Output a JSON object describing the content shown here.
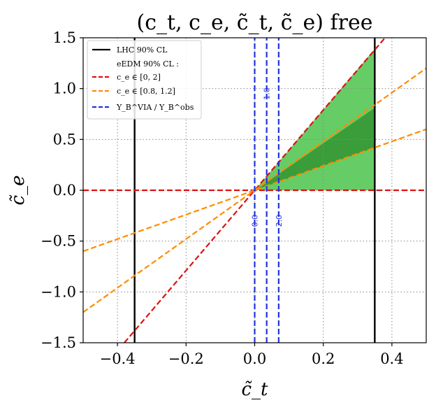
{
  "chart_data": {
    "type": "line",
    "title": "(c_t, c_e, c̃_t, c̃_e) free",
    "xlabel": "c̃_t",
    "ylabel": "c̃_e",
    "xlim": [
      -0.5,
      0.5
    ],
    "ylim": [
      -1.5,
      1.5
    ],
    "xticks": [
      "−0.4",
      "−0.2",
      "0.0",
      "0.2",
      "0.4"
    ],
    "xtick_values": [
      -0.4,
      -0.2,
      0.0,
      0.2,
      0.4
    ],
    "yticks": [
      "−1.5",
      "−1.0",
      "−0.5",
      "0.0",
      "0.5",
      "1.0",
      "1.5"
    ],
    "ytick_values": [
      -1.5,
      -1.0,
      -0.5,
      0.0,
      0.5,
      1.0,
      1.5
    ],
    "grid": true,
    "legend_position": "top-left",
    "legend": [
      {
        "label": "LHC 90% CL",
        "color": "#000000",
        "style": "solid"
      },
      {
        "label": "eEDM 90% CL :",
        "color": null,
        "style": "none"
      },
      {
        "label": "c_e ∈ [0, 2]",
        "color": "#dd1111",
        "style": "dashed"
      },
      {
        "label": "c_e ∈ [0.8, 1.2]",
        "color": "#ff8c00",
        "style": "dashed"
      },
      {
        "label": "Y_B^VIA / Y_B^obs",
        "color": "#2233dd",
        "style": "dashed"
      }
    ],
    "fill_regions": [
      {
        "name": "lighter region",
        "color": "#66cc66",
        "polygon": [
          [
            0.005,
            0.0
          ],
          [
            0.35,
            0.0
          ],
          [
            0.35,
            1.39
          ],
          [
            0.005,
            0.02
          ]
        ]
      },
      {
        "name": "darker region",
        "color": "#3a9d3a",
        "polygon": [
          [
            0.005,
            0.01
          ],
          [
            0.35,
            0.81
          ],
          [
            0.35,
            0.42
          ],
          [
            0.005,
            0.005
          ]
        ]
      }
    ],
    "series": [
      {
        "name": "LHC 90% CL",
        "color": "#000000",
        "style": "solid",
        "x": [
          -0.35,
          -0.35
        ],
        "y": [
          -1.5,
          1.5
        ]
      },
      {
        "name": "LHC 90% CL",
        "color": "#000000",
        "style": "solid",
        "x": [
          0.35,
          0.35
        ],
        "y": [
          -1.5,
          1.5
        ]
      },
      {
        "name": "c_e ∈ [0, 2]",
        "color": "#dd1111",
        "style": "dashed",
        "x": [
          -0.5,
          0.5
        ],
        "y": [
          0.0,
          0.0
        ]
      },
      {
        "name": "c_e ∈ [0, 2]",
        "color": "#dd1111",
        "style": "dashed",
        "x": [
          -0.38,
          0.38
        ],
        "y": [
          -1.5,
          1.5
        ]
      },
      {
        "name": "c_e ∈ [0.8, 1.2]",
        "color": "#ff8c00",
        "style": "dashed",
        "x": [
          -0.5,
          0.5
        ],
        "y": [
          -1.2,
          1.2
        ]
      },
      {
        "name": "c_e ∈ [0.8, 1.2]",
        "color": "#ff8c00",
        "style": "dashed",
        "x": [
          -0.5,
          0.5
        ],
        "y": [
          -0.6,
          0.6
        ]
      },
      {
        "name": "Y_B^VIA / Y_B^obs",
        "color": "#2233dd",
        "style": "dashed",
        "x": [
          0.0,
          0.0
        ],
        "y": [
          -1.5,
          1.5
        ]
      },
      {
        "name": "Y_B^VIA / Y_B^obs",
        "color": "#2233dd",
        "style": "dashed",
        "x": [
          0.035,
          0.035
        ],
        "y": [
          -1.5,
          1.5
        ]
      },
      {
        "name": "Y_B^VIA / Y_B^obs",
        "color": "#2233dd",
        "style": "dashed",
        "x": [
          0.07,
          0.07
        ],
        "y": [
          -1.5,
          1.5
        ]
      }
    ],
    "annotations": [
      {
        "text": "0.0",
        "x": 0.0,
        "y": -0.3
      },
      {
        "text": "1.0",
        "x": 0.035,
        "y": 0.95
      },
      {
        "text": "2.0",
        "x": 0.07,
        "y": -0.3
      }
    ]
  }
}
